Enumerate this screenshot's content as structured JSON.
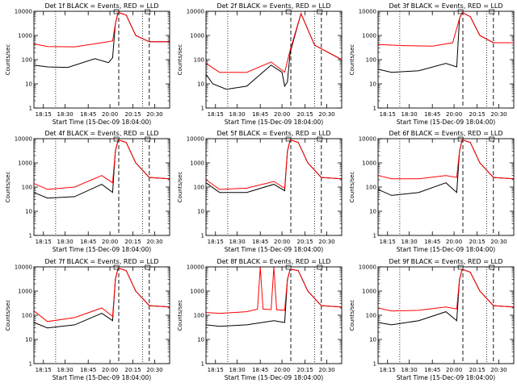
{
  "colors": {
    "events": "#000000",
    "lld": "#ff0000",
    "axis": "#000000",
    "background": "#ffffff"
  },
  "chart_data": [
    {
      "type": "line",
      "title": "Det 1f BLACK = Events, RED = LLD",
      "xlabel": "Start Time (15-Dec-09 18:04:00)",
      "ylabel": "Counts/sec",
      "x_ticks": [
        "18:15",
        "18:30",
        "18:45",
        "20:00",
        "20:15",
        "20:30"
      ],
      "y_ticks": [
        "1",
        "10",
        "100",
        "1000",
        "10000"
      ],
      "y_scale": "log",
      "ylim": [
        1,
        10000
      ],
      "series": [
        {
          "key": "events",
          "x": [
            0,
            0.1,
            0.25,
            0.45,
            0.55,
            0.58,
            0.6,
            0.62,
            0.68,
            0.75,
            0.85,
            1
          ],
          "values": [
            60,
            50,
            48,
            110,
            75,
            120,
            3000,
            9000,
            7000,
            1000,
            550,
            550
          ]
        },
        {
          "key": "lld",
          "x": [
            0,
            0.1,
            0.3,
            0.5,
            0.58,
            0.6,
            0.62,
            0.68,
            0.75,
            0.85,
            1
          ],
          "values": [
            450,
            350,
            340,
            500,
            600,
            3000,
            9000,
            7000,
            1000,
            550,
            550
          ]
        }
      ]
    },
    {
      "type": "line",
      "title": "Det 2f BLACK = Events, RED = LLD",
      "xlabel": "Start Time (15-Dec-09 18:04:00)",
      "ylabel": "Counts/sec",
      "x_ticks": [
        "18:15",
        "18:30",
        "18:45",
        "20:00",
        "20:15",
        "20:30"
      ],
      "y_ticks": [
        "1",
        "10",
        "100",
        "1000",
        "10000"
      ],
      "y_scale": "log",
      "ylim": [
        1,
        10000
      ],
      "series": [
        {
          "key": "events",
          "x": [
            0,
            0.05,
            0.15,
            0.3,
            0.48,
            0.56,
            0.58,
            0.6,
            0.62,
            0.7,
            0.8,
            1
          ],
          "values": [
            25,
            10,
            6,
            8,
            60,
            30,
            8,
            12,
            200,
            8000,
            400,
            100
          ]
        },
        {
          "key": "lld",
          "x": [
            0,
            0.1,
            0.3,
            0.48,
            0.58,
            0.62,
            0.7,
            0.8,
            1
          ],
          "values": [
            70,
            30,
            30,
            80,
            30,
            250,
            8000,
            400,
            100
          ]
        }
      ]
    },
    {
      "type": "line",
      "title": "Det 3f BLACK = Events, RED = LLD",
      "xlabel": "Start Time (15-Dec-09 18:04:00)",
      "ylabel": "Counts/sec",
      "x_ticks": [
        "18:15",
        "18:30",
        "18:45",
        "20:00",
        "20:15",
        "20:30"
      ],
      "y_ticks": [
        "1",
        "10",
        "100",
        "1000",
        "10000"
      ],
      "y_scale": "log",
      "ylim": [
        1,
        10000
      ],
      "series": [
        {
          "key": "events",
          "x": [
            0,
            0.1,
            0.3,
            0.5,
            0.58,
            0.6,
            0.62,
            0.68,
            0.75,
            0.85,
            1
          ],
          "values": [
            40,
            30,
            35,
            70,
            50,
            5000,
            9000,
            6000,
            1000,
            500,
            500
          ]
        },
        {
          "key": "lld",
          "x": [
            0,
            0.2,
            0.4,
            0.55,
            0.6,
            0.62,
            0.68,
            0.75,
            0.85,
            1
          ],
          "values": [
            420,
            380,
            360,
            500,
            5000,
            9000,
            6000,
            1000,
            500,
            500
          ]
        }
      ]
    },
    {
      "type": "line",
      "title": "Det 4f BLACK = Events, RED = LLD",
      "xlabel": "Start Time (15-Dec-09 18:04:00)",
      "ylabel": "Counts/sec",
      "x_ticks": [
        "18:15",
        "18:30",
        "18:45",
        "20:00",
        "20:15",
        "20:30"
      ],
      "y_ticks": [
        "1",
        "10",
        "100",
        "1000",
        "10000"
      ],
      "y_scale": "log",
      "ylim": [
        1,
        10000
      ],
      "series": [
        {
          "key": "events",
          "x": [
            0,
            0.1,
            0.3,
            0.5,
            0.58,
            0.6,
            0.62,
            0.68,
            0.75,
            0.85,
            1
          ],
          "values": [
            60,
            35,
            40,
            130,
            60,
            3000,
            9000,
            7000,
            1000,
            250,
            220
          ]
        },
        {
          "key": "lld",
          "x": [
            0,
            0.1,
            0.3,
            0.5,
            0.58,
            0.6,
            0.62,
            0.68,
            0.75,
            0.85,
            1
          ],
          "values": [
            140,
            80,
            100,
            300,
            150,
            3000,
            9000,
            7000,
            1000,
            250,
            220
          ]
        }
      ]
    },
    {
      "type": "line",
      "title": "Det 5f BLACK = Events, RED = LLD",
      "xlabel": "Start Time (15-Dec-09 18:04:00)",
      "ylabel": "Counts/sec",
      "x_ticks": [
        "18:15",
        "18:30",
        "18:45",
        "20:00",
        "20:15",
        "20:30"
      ],
      "y_ticks": [
        "1",
        "10",
        "100",
        "1000",
        "10000"
      ],
      "y_scale": "log",
      "ylim": [
        1,
        10000
      ],
      "series": [
        {
          "key": "events",
          "x": [
            0,
            0.1,
            0.3,
            0.5,
            0.58,
            0.6,
            0.62,
            0.68,
            0.75,
            0.85,
            1
          ],
          "values": [
            150,
            60,
            60,
            130,
            70,
            3000,
            9000,
            7000,
            1000,
            250,
            220
          ]
        },
        {
          "key": "lld",
          "x": [
            0,
            0.1,
            0.3,
            0.5,
            0.58,
            0.6,
            0.62,
            0.68,
            0.75,
            0.85,
            1
          ],
          "values": [
            200,
            80,
            90,
            170,
            90,
            3000,
            9000,
            7000,
            1000,
            250,
            220
          ]
        }
      ]
    },
    {
      "type": "line",
      "title": "Det 6f BLACK = Events, RED = LLD",
      "xlabel": "Start Time (15-Dec-09 18:04:00)",
      "ylabel": "Counts/sec",
      "x_ticks": [
        "18:15",
        "18:30",
        "18:45",
        "20:00",
        "20:15",
        "20:30"
      ],
      "y_ticks": [
        "1",
        "10",
        "100",
        "1000",
        "10000"
      ],
      "y_scale": "log",
      "ylim": [
        1,
        10000
      ],
      "series": [
        {
          "key": "events",
          "x": [
            0,
            0.1,
            0.3,
            0.5,
            0.58,
            0.6,
            0.62,
            0.68,
            0.75,
            0.85,
            1
          ],
          "values": [
            80,
            45,
            60,
            150,
            60,
            3000,
            9000,
            7000,
            1000,
            250,
            220
          ]
        },
        {
          "key": "lld",
          "x": [
            0,
            0.1,
            0.3,
            0.5,
            0.58,
            0.6,
            0.62,
            0.68,
            0.75,
            0.85,
            1
          ],
          "values": [
            300,
            220,
            220,
            300,
            250,
            3000,
            9000,
            7000,
            1000,
            250,
            220
          ]
        }
      ]
    },
    {
      "type": "line",
      "title": "Det 7f BLACK = Events, RED = LLD",
      "xlabel": "Start Time (15-Dec-09 18:04:00)",
      "ylabel": "Counts/sec",
      "x_ticks": [
        "18:15",
        "18:30",
        "18:45",
        "20:00",
        "20:15",
        "20:30"
      ],
      "y_ticks": [
        "1",
        "10",
        "100",
        "1000",
        "10000"
      ],
      "y_scale": "log",
      "ylim": [
        1,
        10000
      ],
      "series": [
        {
          "key": "events",
          "x": [
            0,
            0.1,
            0.3,
            0.5,
            0.58,
            0.6,
            0.62,
            0.68,
            0.75,
            0.85,
            1
          ],
          "values": [
            50,
            30,
            40,
            120,
            60,
            3000,
            9000,
            7000,
            1000,
            250,
            220
          ]
        },
        {
          "key": "lld",
          "x": [
            0,
            0.1,
            0.3,
            0.5,
            0.58,
            0.6,
            0.62,
            0.68,
            0.75,
            0.85,
            1
          ],
          "values": [
            150,
            55,
            80,
            200,
            90,
            3000,
            9000,
            7000,
            1000,
            250,
            220
          ]
        }
      ]
    },
    {
      "type": "line",
      "title": "Det 8f BLACK = Events, RED = LLD",
      "xlabel": "Start Time (15-Dec-09 18:04:00)",
      "ylabel": "Counts/sec",
      "x_ticks": [
        "18:15",
        "18:30",
        "18:45",
        "20:00",
        "20:15",
        "20:30"
      ],
      "y_ticks": [
        "1",
        "10",
        "100",
        "1000",
        "10000"
      ],
      "y_scale": "log",
      "ylim": [
        1,
        10000
      ],
      "series": [
        {
          "key": "events",
          "x": [
            0,
            0.1,
            0.3,
            0.5,
            0.58,
            0.6,
            0.62,
            0.68,
            0.75,
            0.85,
            1
          ],
          "values": [
            40,
            35,
            40,
            60,
            50,
            3000,
            8000,
            7000,
            1000,
            250,
            220
          ]
        },
        {
          "key": "lld",
          "x": [
            0,
            0.1,
            0.3,
            0.38,
            0.4,
            0.42,
            0.48,
            0.5,
            0.52,
            0.58,
            0.6,
            0.62,
            0.68,
            0.75,
            0.85,
            1
          ],
          "values": [
            130,
            120,
            140,
            180,
            10000,
            180,
            170,
            10000,
            170,
            160,
            3000,
            8000,
            7000,
            1000,
            250,
            220
          ]
        }
      ]
    },
    {
      "type": "line",
      "title": "Det 9f BLACK = Events, RED = LLD",
      "xlabel": "Start Time (15-Dec-09 18:04:00)",
      "ylabel": "Counts/sec",
      "x_ticks": [
        "18:15",
        "18:30",
        "18:45",
        "20:00",
        "20:15",
        "20:30"
      ],
      "y_ticks": [
        "1",
        "10",
        "100",
        "1000",
        "10000"
      ],
      "y_scale": "log",
      "ylim": [
        1,
        10000
      ],
      "series": [
        {
          "key": "events",
          "x": [
            0,
            0.1,
            0.3,
            0.5,
            0.58,
            0.6,
            0.62,
            0.68,
            0.75,
            0.85,
            1
          ],
          "values": [
            50,
            40,
            60,
            140,
            60,
            3000,
            8000,
            6000,
            1000,
            250,
            220
          ]
        },
        {
          "key": "lld",
          "x": [
            0,
            0.1,
            0.3,
            0.5,
            0.58,
            0.6,
            0.62,
            0.68,
            0.75,
            0.85,
            1
          ],
          "values": [
            200,
            150,
            160,
            220,
            180,
            3000,
            8000,
            6000,
            1000,
            250,
            220
          ]
        }
      ]
    }
  ]
}
